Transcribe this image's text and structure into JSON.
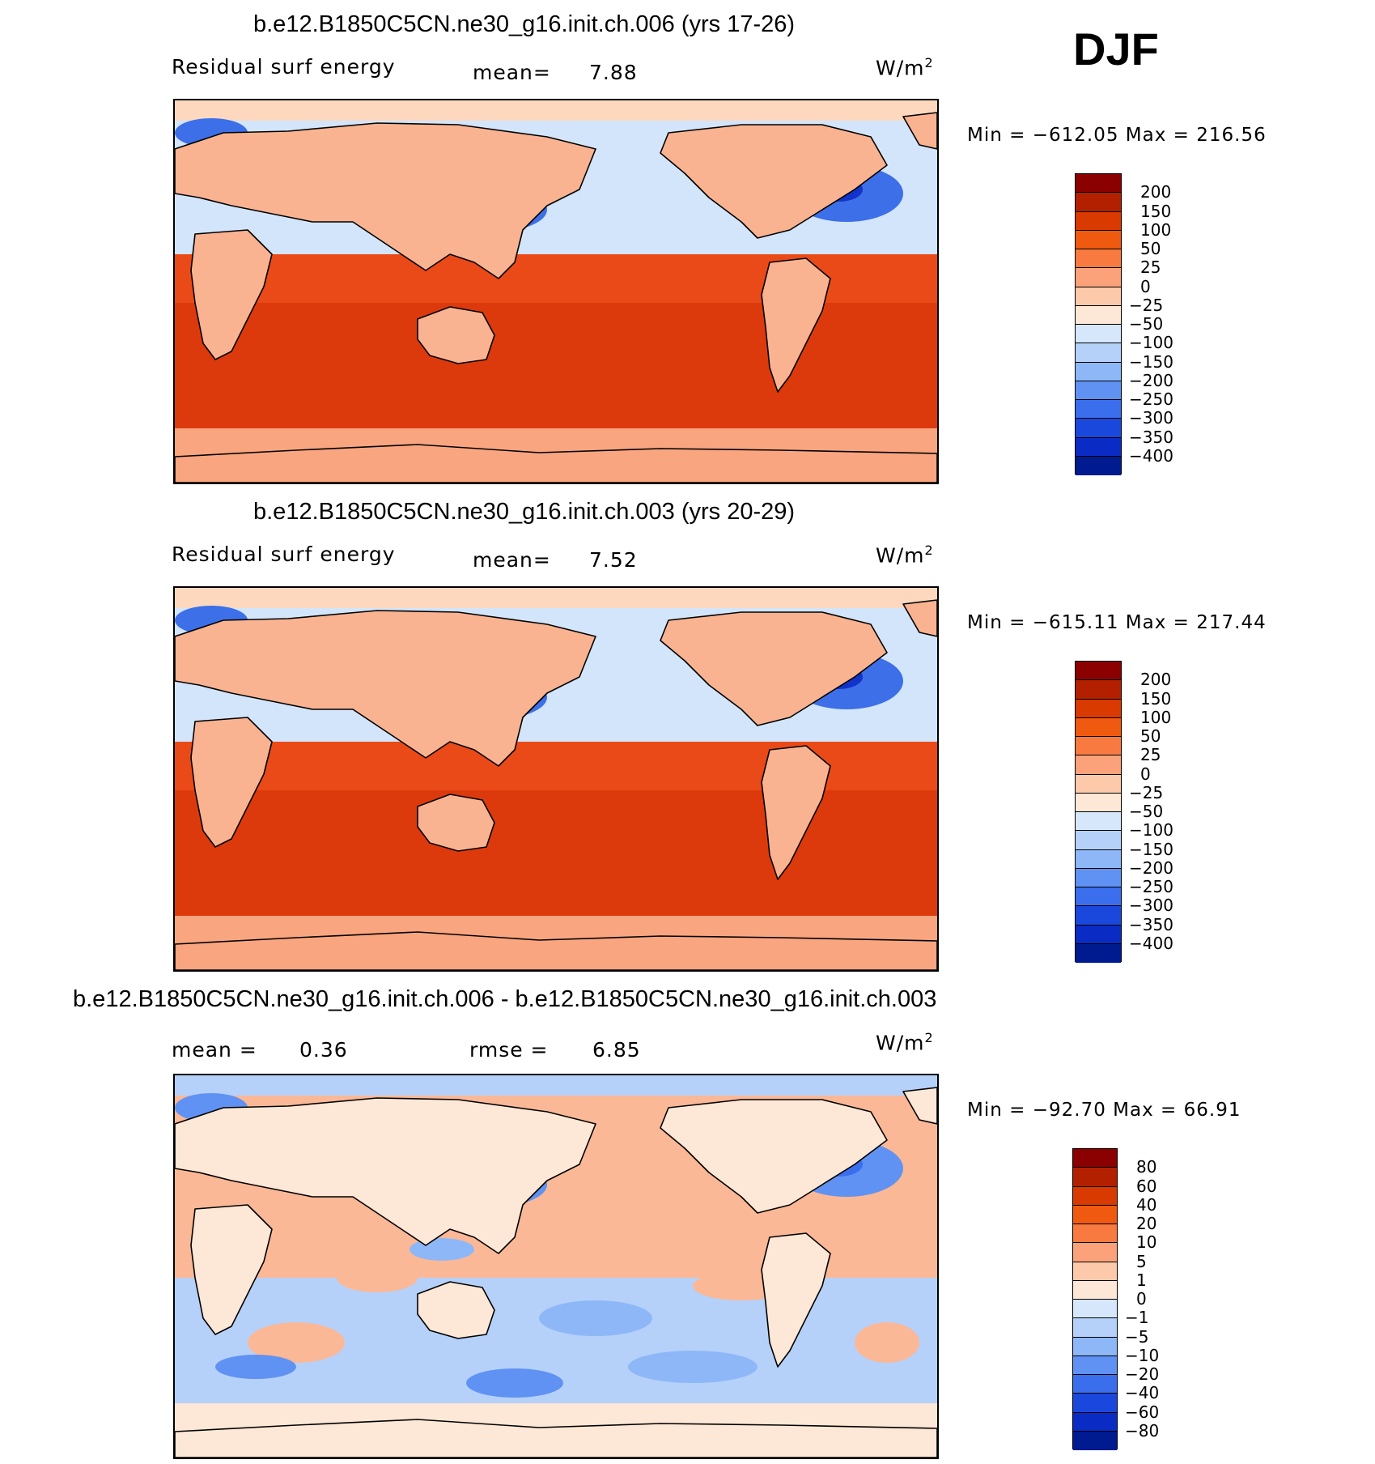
{
  "season": "DJF",
  "panels": [
    {
      "title": "b.e12.B1850C5CN.ne30_g16.init.ch.006 (yrs 17-26)",
      "left_label": "Residual surf energy",
      "mid_label": "mean=",
      "mid_value": "7.88",
      "units": "W/m",
      "units_sup": "2",
      "min_label": "Min",
      "eq": "=",
      "min_value": "−612.05",
      "max_label": "Max",
      "max_value": "216.56",
      "colorbar": {
        "colors": [
          "#8b0000",
          "#b22000",
          "#d93a00",
          "#f05a10",
          "#f87a40",
          "#fba27a",
          "#fcc9ab",
          "#fde7d6",
          "#d6e7fb",
          "#b5d1fa",
          "#8eb7f8",
          "#5f92f2",
          "#3a6eec",
          "#1b48dc",
          "#0a2bc4",
          "#001a90"
        ],
        "labels": [
          "200",
          "150",
          "100",
          "50",
          "25",
          "0",
          "−25",
          "−50",
          "−100",
          "−150",
          "−200",
          "−250",
          "−300",
          "−350",
          "−400"
        ]
      },
      "map_palette": {
        "land": "#f9b391",
        "ocean_south": "#dc3a0c",
        "ocean_trop": "#ea4a18",
        "ocean_north": "#d3e5fb",
        "cold_pool": "#3c6fe8",
        "deep_cold": "#1133c9",
        "polar": "#fdd8bf",
        "antarctic": "#f9a57f"
      }
    },
    {
      "title": "b.e12.B1850C5CN.ne30_g16.init.ch.003 (yrs 20-29)",
      "left_label": "Residual surf energy",
      "mid_label": "mean=",
      "mid_value": "7.52",
      "units": "W/m",
      "units_sup": "2",
      "min_label": "Min",
      "eq": "=",
      "min_value": "−615.11",
      "max_label": "Max",
      "max_value": "217.44",
      "colorbar": {
        "colors": [
          "#8b0000",
          "#b22000",
          "#d93a00",
          "#f05a10",
          "#f87a40",
          "#fba27a",
          "#fcc9ab",
          "#fde7d6",
          "#d6e7fb",
          "#b5d1fa",
          "#8eb7f8",
          "#5f92f2",
          "#3a6eec",
          "#1b48dc",
          "#0a2bc4",
          "#001a90"
        ],
        "labels": [
          "200",
          "150",
          "100",
          "50",
          "25",
          "0",
          "−25",
          "−50",
          "−100",
          "−150",
          "−200",
          "−250",
          "−300",
          "−350",
          "−400"
        ]
      },
      "map_palette": {
        "land": "#f9b391",
        "ocean_south": "#dc3a0c",
        "ocean_trop": "#ea4a18",
        "ocean_north": "#d3e5fb",
        "cold_pool": "#3c6fe8",
        "deep_cold": "#1133c9",
        "polar": "#fdd8bf",
        "antarctic": "#f9a57f"
      }
    },
    {
      "title": "b.e12.B1850C5CN.ne30_g16.init.ch.006 - b.e12.B1850C5CN.ne30_g16.init.ch.003",
      "left_label": "mean =",
      "left_value": "0.36",
      "mid_label": "rmse =",
      "mid_value": "6.85",
      "units": "W/m",
      "units_sup": "2",
      "min_label": "Min",
      "eq": "=",
      "min_value": "−92.70",
      "max_label": "Max",
      "max_value": "66.91",
      "colorbar": {
        "colors": [
          "#8b0000",
          "#b22000",
          "#d93a00",
          "#f05a10",
          "#f87a40",
          "#fba27a",
          "#fcc9ab",
          "#fde7d6",
          "#d6e7fb",
          "#b5d1fa",
          "#8eb7f8",
          "#5f92f2",
          "#3a6eec",
          "#1b48dc",
          "#0a2bc4",
          "#001a90"
        ],
        "labels": [
          "80",
          "60",
          "40",
          "20",
          "10",
          "5",
          "1",
          "0",
          "−1",
          "−5",
          "−10",
          "−20",
          "−40",
          "−60",
          "−80"
        ]
      },
      "map_palette": {
        "land": "#fde7d6",
        "ocean_south": "#b5d1fa",
        "ocean_trop": "#fbb896",
        "ocean_north": "#fbb896",
        "cold_pool": "#5f92f2",
        "deep_cold": "#3a6eec",
        "polar": "#b5d1fa",
        "antarctic": "#fde7d6"
      }
    }
  ]
}
